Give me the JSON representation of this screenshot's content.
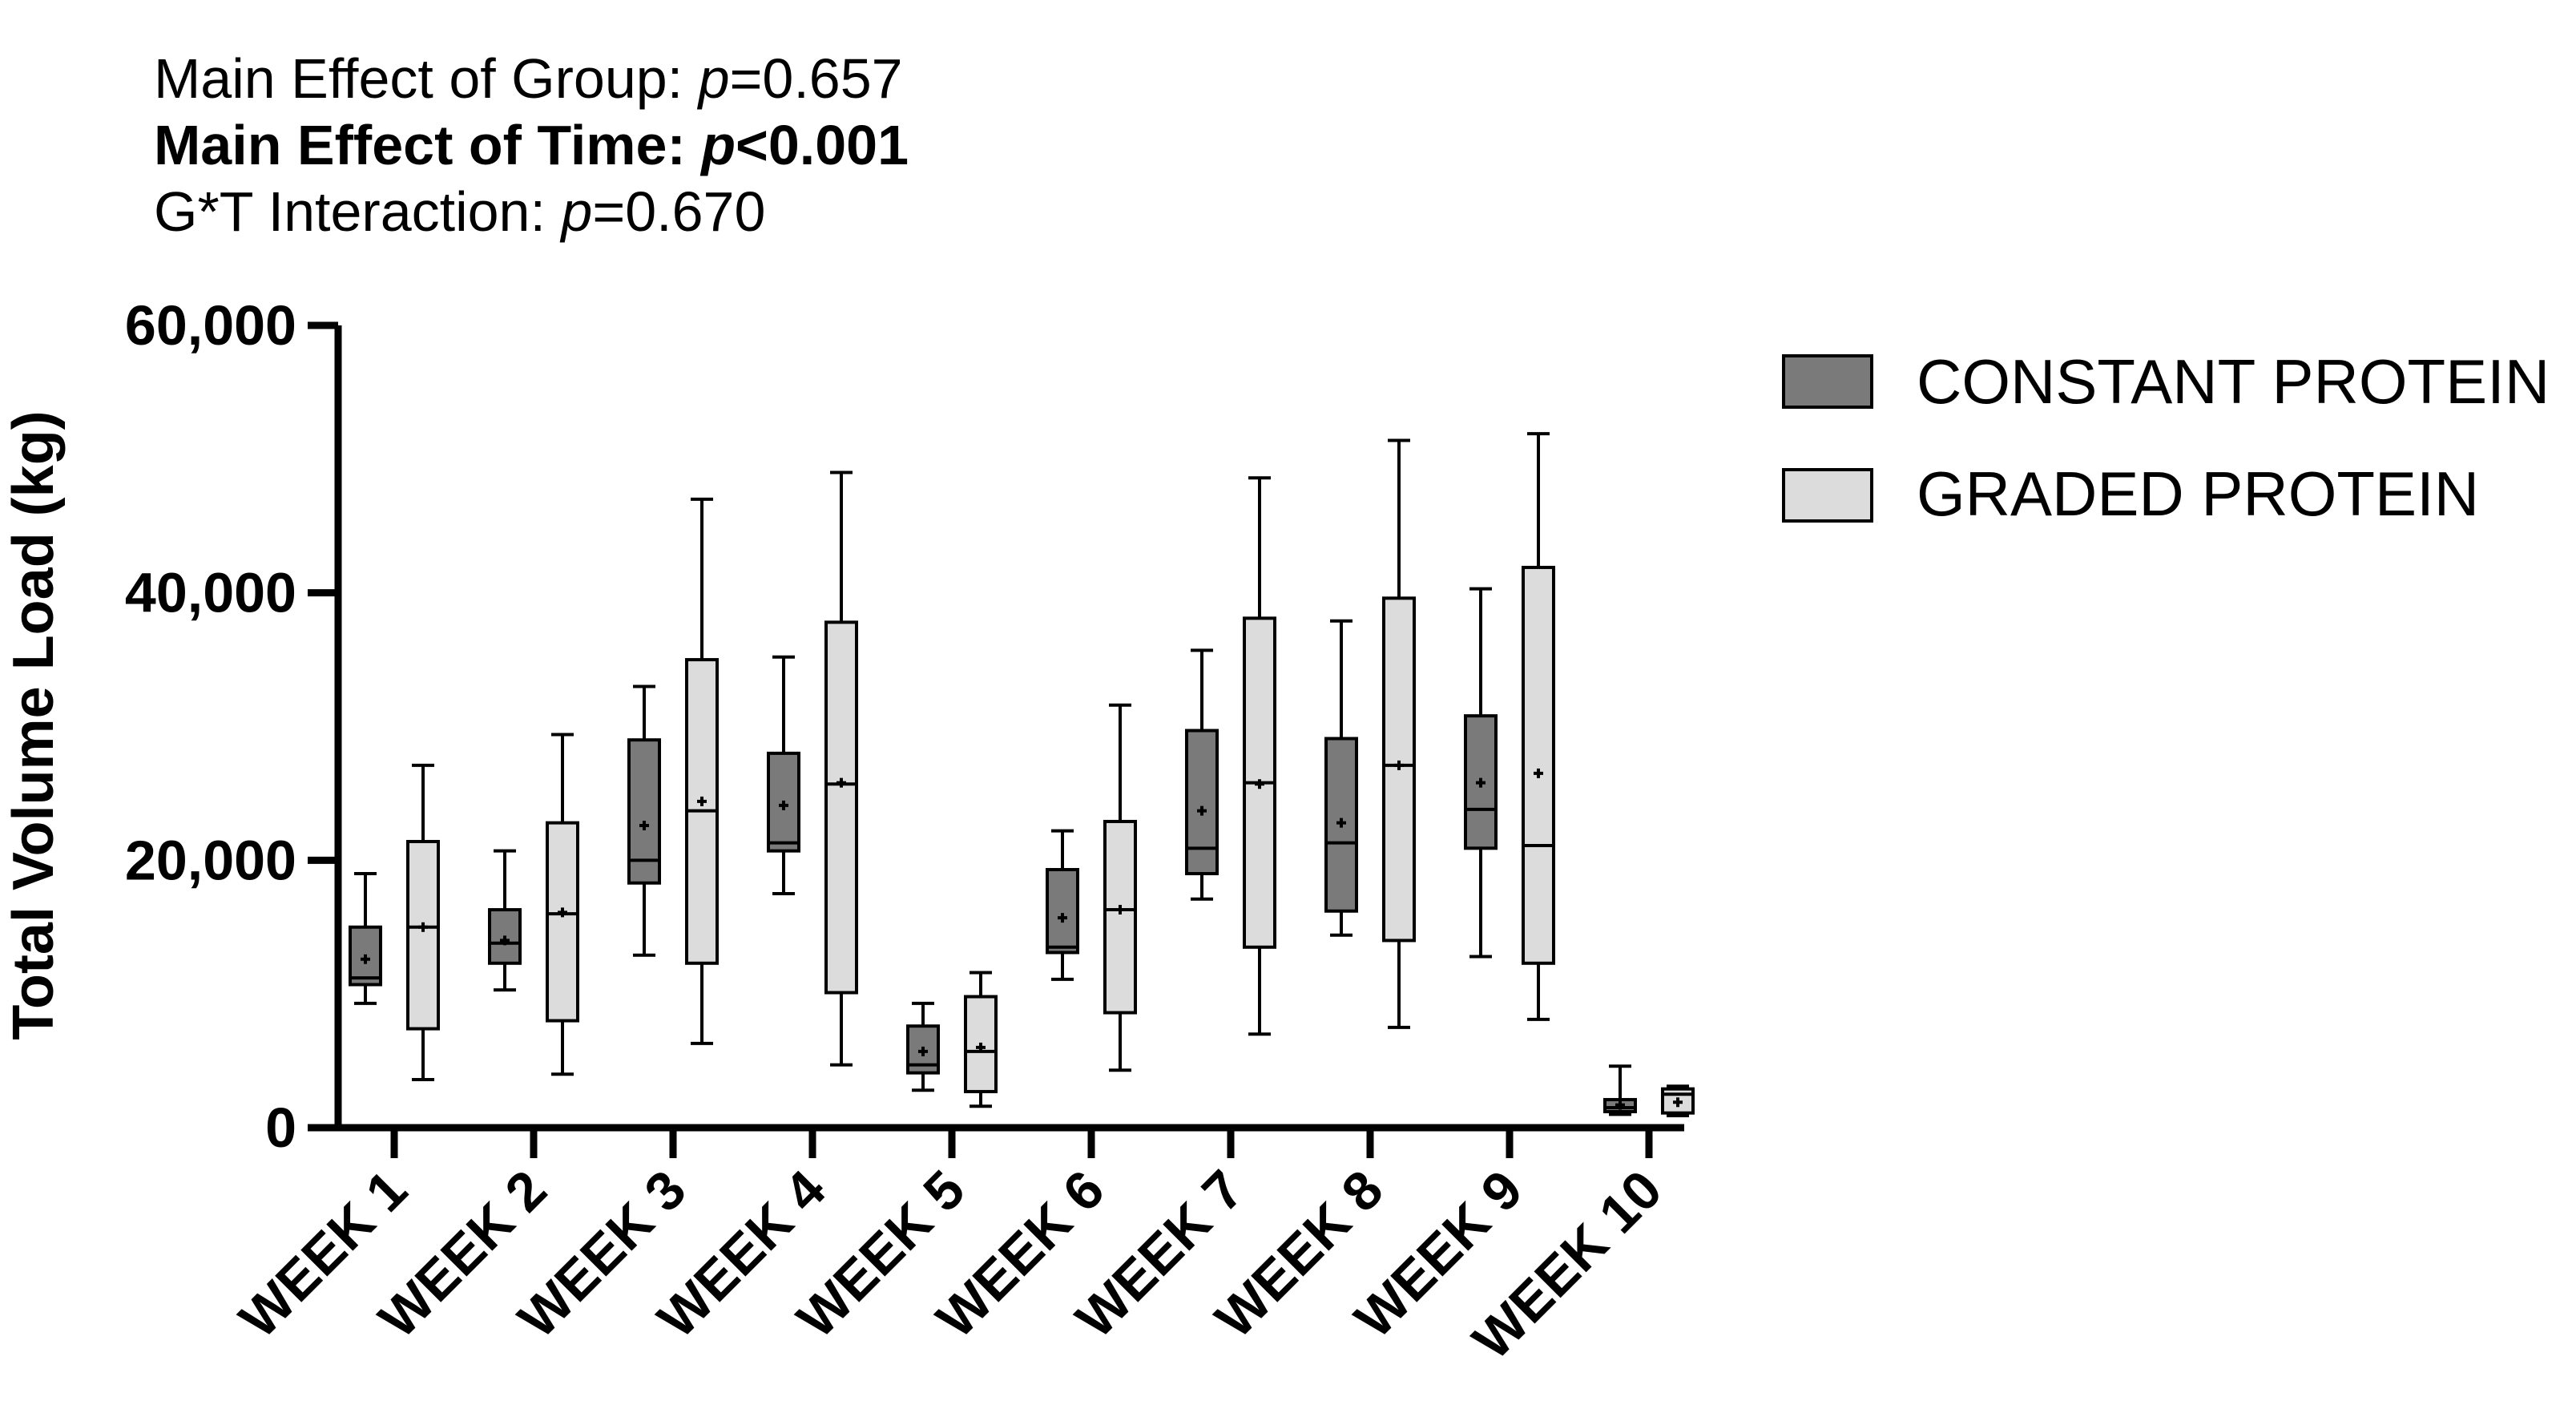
{
  "chart_data": {
    "type": "box",
    "stats": [
      {
        "prefix": "Main Effect of Group: ",
        "p": "p",
        "value": "=0.657",
        "bold": false
      },
      {
        "prefix": "Main Effect of Time: ",
        "p": "p",
        "value": "<0.001",
        "bold": true
      },
      {
        "prefix": "G*T Interaction: ",
        "p": "p",
        "value": "=0.670",
        "bold": false
      }
    ],
    "ylabel": "Total Volume Load (kg)",
    "ylim": [
      0,
      60000
    ],
    "yticks": [
      0,
      20000,
      40000,
      60000
    ],
    "ytick_labels": [
      "0",
      "20,000",
      "40,000",
      "60,000"
    ],
    "categories": [
      "WEEK 1",
      "WEEK 2",
      "WEEK 3",
      "WEEK 4",
      "WEEK 5",
      "WEEK 6",
      "WEEK 7",
      "WEEK 8",
      "WEEK 9",
      "WEEK 10"
    ],
    "legend_position": "top-right",
    "series": [
      {
        "name": "CONSTANT PROTEIN",
        "color": "#7a7a7a",
        "boxes": [
          {
            "min": 9300,
            "q1": 10700,
            "median": 11200,
            "q3": 15000,
            "max": 19000,
            "mean": 12600
          },
          {
            "min": 10300,
            "q1": 12300,
            "median": 13800,
            "q3": 16300,
            "max": 20700,
            "mean": 14000
          },
          {
            "min": 12900,
            "q1": 18300,
            "median": 20000,
            "q3": 29000,
            "max": 33000,
            "mean": 22600
          },
          {
            "min": 17500,
            "q1": 20700,
            "median": 21300,
            "q3": 28000,
            "max": 35200,
            "mean": 24100
          },
          {
            "min": 2800,
            "q1": 4100,
            "median": 4700,
            "q3": 7600,
            "max": 9300,
            "mean": 5700
          },
          {
            "min": 11100,
            "q1": 13100,
            "median": 13500,
            "q3": 19300,
            "max": 22200,
            "mean": 15700
          },
          {
            "min": 17100,
            "q1": 19000,
            "median": 20900,
            "q3": 29700,
            "max": 35700,
            "mean": 23700
          },
          {
            "min": 14400,
            "q1": 16200,
            "median": 21300,
            "q3": 29100,
            "max": 37900,
            "mean": 22800
          },
          {
            "min": 12800,
            "q1": 20900,
            "median": 23800,
            "q3": 30800,
            "max": 40300,
            "mean": 25800
          },
          {
            "min": 1000,
            "q1": 1200,
            "median": 1500,
            "q3": 2100,
            "max": 4600,
            "mean": 1700
          }
        ]
      },
      {
        "name": "GRADED PROTEIN",
        "color": "#dcdcdc",
        "boxes": [
          {
            "min": 3600,
            "q1": 7400,
            "median": 15000,
            "q3": 21400,
            "max": 27100,
            "mean": 15000
          },
          {
            "min": 4000,
            "q1": 8000,
            "median": 16000,
            "q3": 22800,
            "max": 29400,
            "mean": 16100
          },
          {
            "min": 6300,
            "q1": 12300,
            "median": 23700,
            "q3": 35000,
            "max": 47000,
            "mean": 24400
          },
          {
            "min": 4700,
            "q1": 10100,
            "median": 25700,
            "q3": 37800,
            "max": 49000,
            "mean": 25800
          },
          {
            "min": 1600,
            "q1": 2700,
            "median": 5700,
            "q3": 9800,
            "max": 11600,
            "mean": 6000
          },
          {
            "min": 4300,
            "q1": 8600,
            "median": 16300,
            "q3": 22900,
            "max": 31600,
            "mean": 16300
          },
          {
            "min": 7000,
            "q1": 13500,
            "median": 25800,
            "q3": 38100,
            "max": 48600,
            "mean": 25700
          },
          {
            "min": 7500,
            "q1": 14000,
            "median": 27100,
            "q3": 39600,
            "max": 51400,
            "mean": 27100
          },
          {
            "min": 8100,
            "q1": 12300,
            "median": 21100,
            "q3": 41900,
            "max": 51900,
            "mean": 26500
          },
          {
            "min": 900,
            "q1": 1100,
            "median": 2500,
            "q3": 2900,
            "max": 3100,
            "mean": 1900
          }
        ]
      }
    ]
  }
}
